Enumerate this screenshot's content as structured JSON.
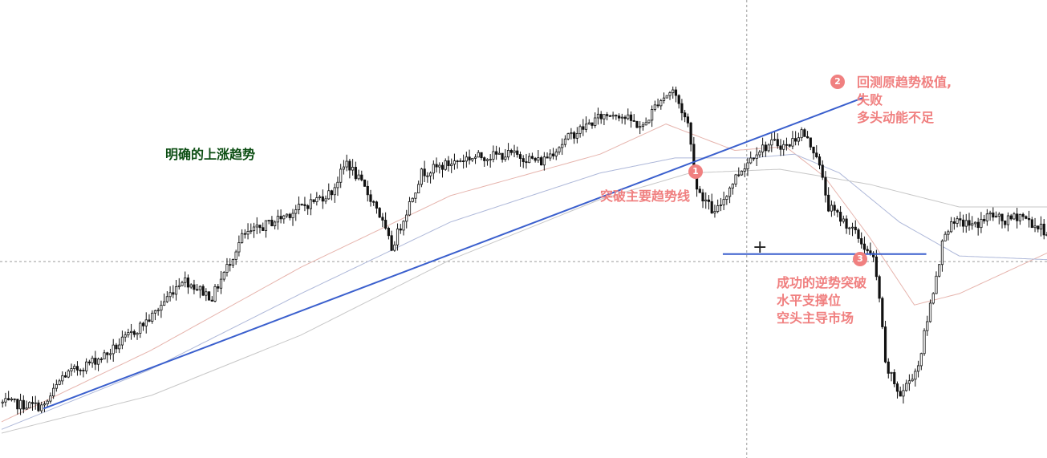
{
  "chart_data": {
    "type": "candlestick",
    "title": "",
    "xlabel": "",
    "ylabel": "",
    "grid": false,
    "ylim": [
      0,
      100
    ],
    "crosshair": {
      "x_bar": 249,
      "y_value": 45.5
    },
    "candle_path_keypoints": [
      [
        0,
        8
      ],
      [
        14,
        7
      ],
      [
        20,
        15
      ],
      [
        35,
        21
      ],
      [
        50,
        31
      ],
      [
        60,
        41
      ],
      [
        70,
        36
      ],
      [
        80,
        52
      ],
      [
        95,
        58
      ],
      [
        110,
        64
      ],
      [
        115,
        72
      ],
      [
        125,
        60
      ],
      [
        130,
        49
      ],
      [
        140,
        69
      ],
      [
        155,
        73
      ],
      [
        170,
        74
      ],
      [
        180,
        72
      ],
      [
        190,
        79
      ],
      [
        200,
        84
      ],
      [
        205,
        85
      ],
      [
        214,
        81
      ],
      [
        219,
        88
      ],
      [
        224,
        91
      ],
      [
        229,
        82
      ],
      [
        232,
        65
      ],
      [
        238,
        58
      ],
      [
        245,
        68
      ],
      [
        252,
        75
      ],
      [
        258,
        77
      ],
      [
        262,
        76
      ],
      [
        267,
        80
      ],
      [
        272,
        74
      ],
      [
        276,
        60
      ],
      [
        284,
        54
      ],
      [
        291,
        46
      ],
      [
        293,
        36
      ],
      [
        295,
        18
      ],
      [
        300,
        10
      ],
      [
        306,
        18
      ],
      [
        310,
        34
      ],
      [
        315,
        54
      ],
      [
        320,
        56
      ],
      [
        325,
        55
      ],
      [
        330,
        58
      ],
      [
        335,
        56
      ],
      [
        340,
        58
      ],
      [
        345,
        55
      ],
      [
        350,
        53
      ]
    ],
    "moving_averages": [
      {
        "name": "",
        "color": "#e6b4ad",
        "values_keypoints": [
          [
            0,
            3
          ],
          [
            50,
            22
          ],
          [
            100,
            44
          ],
          [
            150,
            63
          ],
          [
            200,
            74
          ],
          [
            222,
            82
          ],
          [
            245,
            75
          ],
          [
            262,
            76
          ],
          [
            275,
            68
          ],
          [
            290,
            52
          ],
          [
            305,
            34
          ],
          [
            320,
            37
          ],
          [
            350,
            48
          ]
        ]
      },
      {
        "name": "",
        "color": "#aeb8d9",
        "values_keypoints": [
          [
            0,
            1
          ],
          [
            50,
            17
          ],
          [
            100,
            37
          ],
          [
            150,
            56
          ],
          [
            200,
            69
          ],
          [
            225,
            73
          ],
          [
            250,
            73
          ],
          [
            265,
            74
          ],
          [
            280,
            69
          ],
          [
            300,
            56
          ],
          [
            320,
            47
          ],
          [
            350,
            46
          ]
        ]
      },
      {
        "name": "",
        "color": "#c7c7c7",
        "values_keypoints": [
          [
            0,
            0
          ],
          [
            50,
            10
          ],
          [
            100,
            26
          ],
          [
            150,
            46
          ],
          [
            200,
            62
          ],
          [
            230,
            69
          ],
          [
            260,
            70
          ],
          [
            290,
            66
          ],
          [
            320,
            60
          ],
          [
            350,
            60
          ]
        ]
      }
    ],
    "lines": [
      {
        "name": "trendline",
        "color": "#3a5fcd",
        "from": [
          14,
          6.5
        ],
        "to": [
          288,
          89
        ]
      },
      {
        "name": "support",
        "color": "#3a5fcd",
        "from": [
          241,
          47.5
        ],
        "to": [
          309,
          47.5
        ]
      }
    ],
    "annotations": {
      "uptrend": {
        "text": "明确的上涨趋势",
        "color": "#0b4d12"
      },
      "breakout_main": {
        "marker": "1",
        "text": "突破主要趋势线",
        "color": "#f08080"
      },
      "retest": {
        "marker": "2",
        "lines": [
          "回测原趋势极值,",
          "失败",
          "多头动能不足"
        ],
        "color": "#f08080"
      },
      "reverse_break": {
        "marker": "3",
        "lines": [
          "成功的逆势突破",
          "水平支撑位",
          "空头主导市场"
        ],
        "color": "#f08080"
      }
    }
  }
}
